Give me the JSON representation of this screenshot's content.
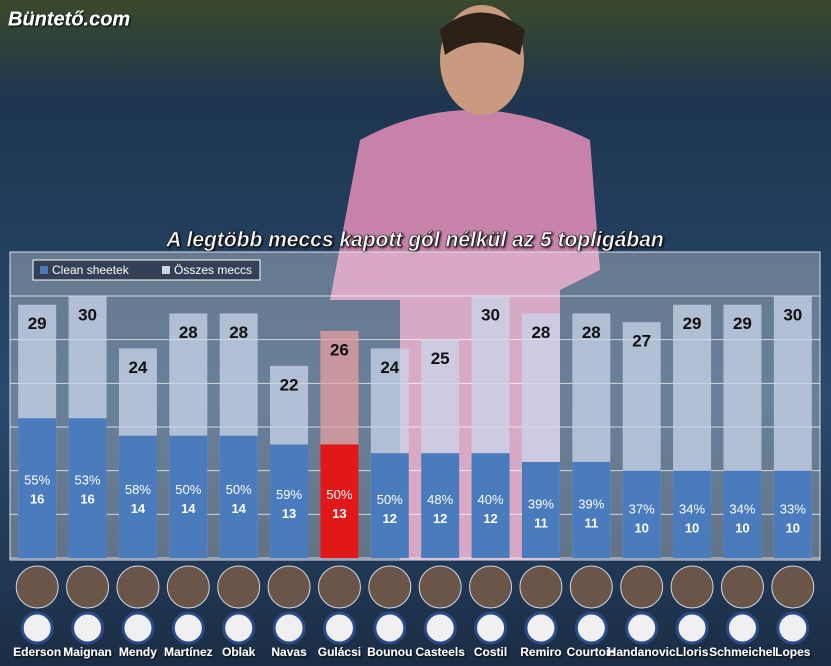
{
  "chart_data": {
    "type": "bar",
    "brand": "Büntető.com",
    "title": "A legtöbb meccs kapott gól nélkül az 5 topligában",
    "categories": [
      "Ederson",
      "Maignan",
      "Mendy",
      "Martínez",
      "Oblak",
      "Navas",
      "Gulácsi",
      "Bounou",
      "Casteels",
      "Costil",
      "Remiro",
      "Courtois",
      "Handanovic",
      "Lloris",
      "Schmeichel",
      "Lopes"
    ],
    "series": [
      {
        "name": "Összes meccs",
        "color": "#c9d6ea",
        "colors": [
          "#c9d6ea",
          "#c9d6ea",
          "#c9d6ea",
          "#c9d6ea",
          "#c9d6ea",
          "#c9d6ea",
          "#e8a0a0",
          "#c9d6ea",
          "#c9d6ea",
          "#c9d6ea",
          "#c9d6ea",
          "#c9d6ea",
          "#c9d6ea",
          "#c9d6ea",
          "#c9d6ea",
          "#c9d6ea"
        ],
        "values": [
          29,
          30,
          24,
          28,
          28,
          22,
          26,
          24,
          25,
          30,
          28,
          28,
          27,
          29,
          29,
          30
        ]
      },
      {
        "name": "Clean sheetek",
        "color": "#4a7bbd",
        "colors": [
          "#4a7bbd",
          "#4a7bbd",
          "#4a7bbd",
          "#4a7bbd",
          "#4a7bbd",
          "#4a7bbd",
          "#e01818",
          "#4a7bbd",
          "#4a7bbd",
          "#4a7bbd",
          "#4a7bbd",
          "#4a7bbd",
          "#4a7bbd",
          "#4a7bbd",
          "#4a7bbd",
          "#4a7bbd"
        ],
        "values": [
          16,
          16,
          14,
          14,
          14,
          13,
          13,
          12,
          12,
          12,
          11,
          11,
          10,
          10,
          10,
          10
        ],
        "percent_labels": [
          "55%",
          "53%",
          "58%",
          "50%",
          "50%",
          "59%",
          "50%",
          "50%",
          "48%",
          "40%",
          "39%",
          "39%",
          "37%",
          "34%",
          "34%",
          "33%"
        ]
      }
    ],
    "ylim": [
      0,
      30
    ],
    "yticks": [
      0,
      5,
      10,
      15,
      20,
      25,
      30
    ],
    "grid": true
  }
}
